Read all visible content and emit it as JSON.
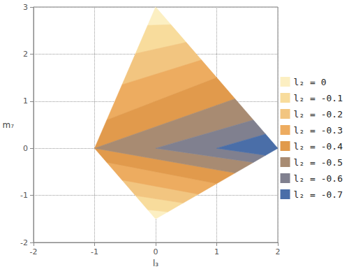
{
  "chart_data": {
    "type": "contour",
    "x_label": "l₃",
    "y_label": "m₇",
    "xlim": [
      -2,
      2
    ],
    "ylim": [
      -2,
      3
    ],
    "xticks": [
      -2,
      -1,
      0,
      1,
      2
    ],
    "yticks": [
      -2,
      -1,
      0,
      1,
      2,
      3
    ],
    "grid": true,
    "legend": "right",
    "series": [
      {
        "name": "l₂ = 0",
        "color": "#fcefc2",
        "values": [
          [
            [
              0,
              3
            ],
            [
              0.25,
              2.625
            ],
            [
              -0.13,
              2.61
            ]
          ],
          [
            [
              0,
              -1.5
            ],
            [
              -0.13,
              -1.305
            ],
            [
              0.2,
              -1.35
            ]
          ]
        ]
      },
      {
        "name": "l₂ = -0.1",
        "color": "#f8dc9c",
        "values": [
          [
            [
              -0.13,
              2.61
            ],
            [
              0.25,
              2.625
            ],
            [
              0.5,
              2.25
            ],
            [
              -0.33,
              2.01
            ]
          ],
          [
            [
              -0.13,
              -1.305
            ],
            [
              -0.33,
              -1.005
            ],
            [
              0.45,
              -1.1625
            ],
            [
              0.2,
              -1.35
            ]
          ]
        ]
      },
      {
        "name": "l₂ = -0.2",
        "color": "#f2c580",
        "values": [
          [
            [
              -0.33,
              2.01
            ],
            [
              0.5,
              2.25
            ],
            [
              0.75,
              1.875
            ],
            [
              -0.55,
              1.35
            ]
          ],
          [
            [
              -0.33,
              -1.005
            ],
            [
              -0.55,
              -0.675
            ],
            [
              0.7,
              -0.975
            ],
            [
              0.45,
              -1.1625
            ]
          ]
        ]
      },
      {
        "name": "l₂ = -0.3",
        "color": "#edac60",
        "values": [
          [
            [
              -0.55,
              1.35
            ],
            [
              0.75,
              1.875
            ],
            [
              1.0,
              1.5
            ],
            [
              -0.8,
              0.6
            ]
          ],
          [
            [
              -0.55,
              -0.675
            ],
            [
              -0.8,
              -0.3
            ],
            [
              1.0,
              -0.75
            ],
            [
              0.7,
              -0.975
            ]
          ]
        ]
      },
      {
        "name": "l₂ = -0.4",
        "color": "#e19a4c",
        "values": [
          [
            [
              -0.8,
              0.6
            ],
            [
              1.0,
              1.5
            ],
            [
              1.3,
              1.05
            ],
            [
              -1,
              0
            ]
          ],
          [
            [
              -1,
              0
            ],
            [
              -0.8,
              -0.3
            ],
            [
              1.0,
              -0.75
            ],
            [
              1.3,
              -0.525
            ]
          ]
        ]
      },
      {
        "name": "l₂ = -0.5",
        "color": "#a88b72",
        "values": [
          [
            [
              -1,
              0
            ],
            [
              1.3,
              1.05
            ],
            [
              1.6,
              0.6
            ],
            [
              0,
              0
            ],
            [
              1.6,
              -0.3
            ],
            [
              1.3,
              -0.525
            ]
          ]
        ]
      },
      {
        "name": "l₂ = -0.6",
        "color": "#80808f",
        "values": [
          [
            [
              0,
              0
            ],
            [
              1.6,
              0.6
            ],
            [
              1.8,
              0.3
            ],
            [
              1,
              0
            ],
            [
              1.8,
              -0.15
            ],
            [
              1.6,
              -0.3
            ]
          ]
        ]
      },
      {
        "name": "l₂ = -0.7",
        "color": "#4a6ea8",
        "values": [
          [
            [
              1,
              0
            ],
            [
              1.8,
              0.3
            ],
            [
              2,
              0
            ],
            [
              1.8,
              -0.15
            ]
          ]
        ]
      }
    ]
  }
}
